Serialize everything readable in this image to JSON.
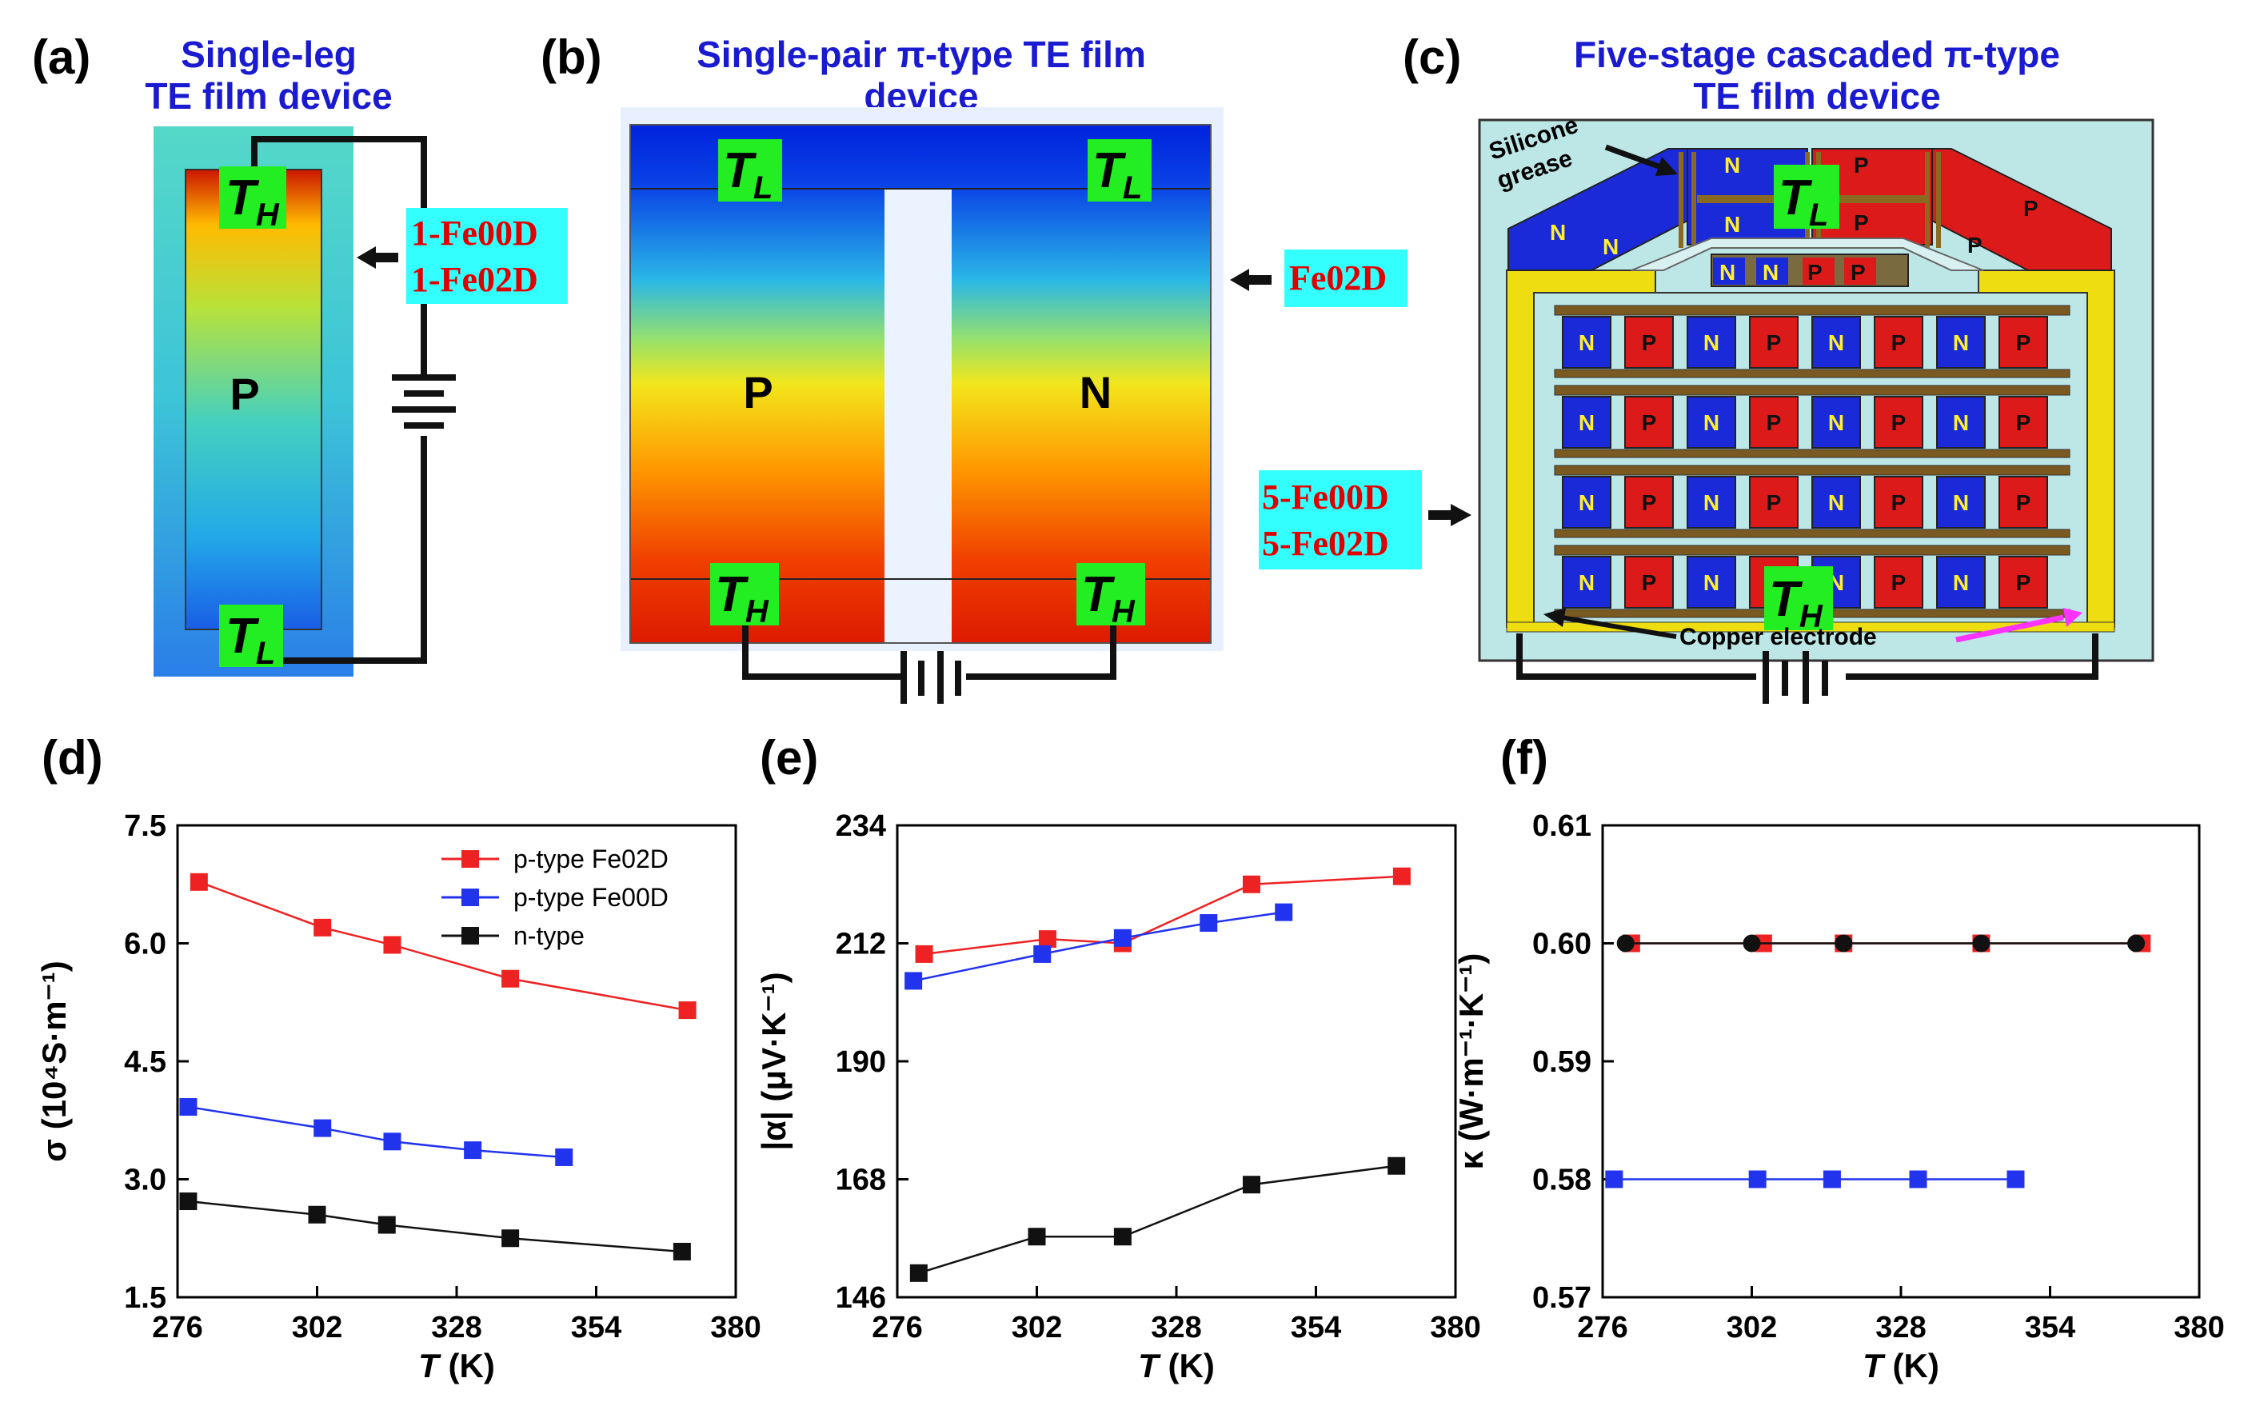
{
  "panels": {
    "a": {
      "label": "(a)",
      "title_line1": "Single-leg",
      "title_line2": "TE film device",
      "leg_label": "P",
      "hot_symbol": "T",
      "hot_sub": "H",
      "cold_symbol": "T",
      "cold_sub": "L",
      "materials": [
        "1-Fe00D",
        "1-Fe02D"
      ]
    },
    "b": {
      "label": "(b)",
      "title_line1": "Single-pair π-type TE film",
      "title_line2": "device",
      "left_leg": "P",
      "right_leg": "N",
      "cold_symbol": "T",
      "cold_sub": "L",
      "hot_symbol": "T",
      "hot_sub": "H",
      "materials": [
        "Fe02D"
      ]
    },
    "c": {
      "label": "(c)",
      "title_line1": "Five-stage cascaded π-type",
      "title_line2": "TE film device",
      "grease_label_1": "Silicone",
      "grease_label_2": "grease",
      "electrode_label": "Copper electrode",
      "n_char": "N",
      "p_char": "P",
      "cold_symbol": "T",
      "cold_sub": "L",
      "hot_symbol": "T",
      "hot_sub": "H",
      "materials": [
        "5-Fe00D",
        "5-Fe02D"
      ]
    },
    "d": {
      "label": "(d)"
    },
    "e": {
      "label": "(e)"
    },
    "f": {
      "label": "(f)"
    }
  },
  "colors": {
    "red": "#ee2222",
    "blue": "#2233ee",
    "black": "#111111",
    "title_blue": "#1a1ad0",
    "label_red": "#e00000",
    "label_bg": "#33ffff",
    "green": "#22ee22"
  },
  "chart_data": [
    {
      "type": "line",
      "panel": "(d)",
      "title": "",
      "xlabel_symbol": "T",
      "xlabel_unit": " (K)",
      "ylabel": "σ (10⁴S·m⁻¹)",
      "xlim": [
        276,
        380
      ],
      "ylim": [
        1.5,
        7.5
      ],
      "xticks": [
        276,
        302,
        328,
        354,
        380
      ],
      "yticks": [
        1.5,
        3.0,
        4.5,
        6.0,
        7.5
      ],
      "ytick_labels": [
        "1.5",
        "3.0",
        "4.5",
        "6.0",
        "7.5"
      ],
      "legend_position": "top-right",
      "series": [
        {
          "name": "p-type Fe02D",
          "color": "#ee2222",
          "marker": "square",
          "x": [
            280,
            303,
            316,
            338,
            371
          ],
          "y": [
            6.78,
            6.2,
            5.98,
            5.55,
            5.15
          ]
        },
        {
          "name": "p-type Fe00D",
          "color": "#2233ee",
          "marker": "square",
          "x": [
            278,
            303,
            316,
            331,
            348
          ],
          "y": [
            3.92,
            3.65,
            3.48,
            3.37,
            3.28
          ]
        },
        {
          "name": "n-type",
          "color": "#111111",
          "marker": "square",
          "x": [
            278,
            302,
            315,
            338,
            370
          ],
          "y": [
            2.72,
            2.55,
            2.42,
            2.25,
            2.08
          ]
        }
      ]
    },
    {
      "type": "line",
      "panel": "(e)",
      "title": "",
      "xlabel_symbol": "T",
      "xlabel_unit": " (K)",
      "ylabel": "|α| (μV·K⁻¹)",
      "xlim": [
        276,
        380
      ],
      "ylim": [
        146,
        234
      ],
      "xticks": [
        276,
        302,
        328,
        354,
        380
      ],
      "yticks": [
        146,
        168,
        190,
        212,
        234
      ],
      "ytick_labels": [
        "146",
        "168",
        "190",
        "212",
        "234"
      ],
      "series": [
        {
          "name": "p-type Fe02D",
          "color": "#ee2222",
          "marker": "square",
          "x": [
            281,
            304,
            318,
            342,
            370
          ],
          "y": [
            210,
            212.8,
            212,
            223,
            224.5
          ]
        },
        {
          "name": "p-type Fe00D",
          "color": "#2233ee",
          "marker": "square",
          "x": [
            279,
            303,
            318,
            334,
            348
          ],
          "y": [
            205,
            210,
            213,
            215.8,
            217.8
          ]
        },
        {
          "name": "n-type",
          "color": "#111111",
          "marker": "square",
          "x": [
            280,
            302,
            318,
            342,
            369
          ],
          "y": [
            150.5,
            157.3,
            157.3,
            167,
            170.5
          ]
        }
      ]
    },
    {
      "type": "line",
      "panel": "(f)",
      "title": "",
      "xlabel_symbol": "T",
      "xlabel_unit": " (K)",
      "ylabel": "κ (W·m⁻¹·K⁻¹)",
      "xlim": [
        276,
        380
      ],
      "ylim": [
        0.57,
        0.61
      ],
      "xticks": [
        276,
        302,
        328,
        354,
        380
      ],
      "yticks": [
        0.57,
        0.58,
        0.59,
        0.6,
        0.61
      ],
      "ytick_labels": [
        "0.57",
        "0.58",
        "0.59",
        "0.60",
        "0.61"
      ],
      "series": [
        {
          "name": "p-type Fe02D",
          "color": "#ee2222",
          "marker": "square",
          "x": [
            281,
            304,
            318,
            342,
            370
          ],
          "y": [
            0.6,
            0.6,
            0.6,
            0.6,
            0.6
          ]
        },
        {
          "name": "p-type Fe00D",
          "color": "#2233ee",
          "marker": "square",
          "x": [
            278,
            303,
            316,
            331,
            348
          ],
          "y": [
            0.58,
            0.58,
            0.58,
            0.58,
            0.58
          ]
        },
        {
          "name": "n-type",
          "color": "#111111",
          "marker": "circle",
          "x": [
            280,
            302,
            318,
            342,
            369
          ],
          "y": [
            0.6,
            0.6,
            0.6,
            0.6,
            0.6
          ]
        }
      ]
    }
  ]
}
